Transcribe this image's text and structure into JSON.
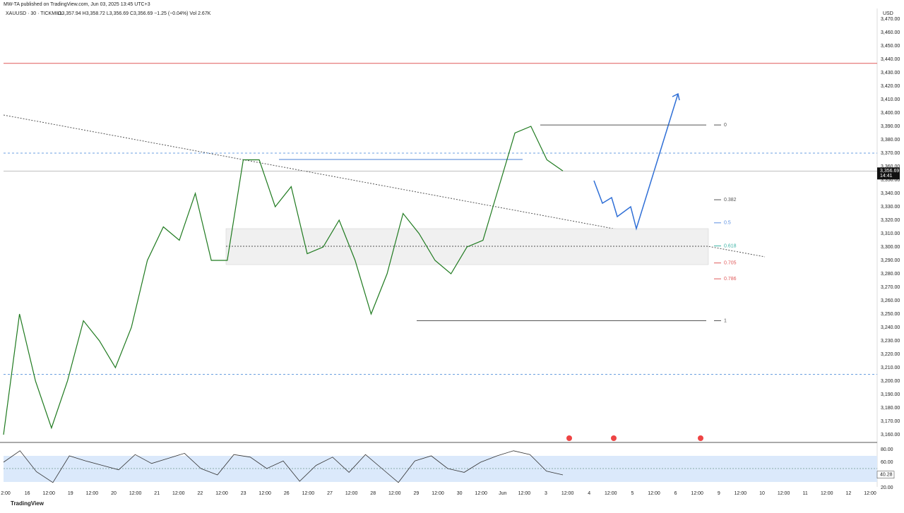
{
  "header": {
    "publisher": "MW-TA published on TradingView.com, Jun 03, 2025 13:45 UTC+3",
    "symbol": "XAUUSD · 30 · TICKMILL",
    "ohlc": "O3,357.94 H3,358.72 L3,356.69 C3,356.69 −1.25 (−0.04%) Vol 2.67K"
  },
  "currency": "USD",
  "price_ticks": [
    {
      "value": 3470,
      "label": "3,470.00"
    },
    {
      "value": 3460,
      "label": "3,460.00"
    },
    {
      "value": 3450,
      "label": "3,450.00"
    },
    {
      "value": 3440,
      "label": "3,440.00"
    },
    {
      "value": 3430,
      "label": "3,430.00"
    },
    {
      "value": 3420,
      "label": "3,420.00"
    },
    {
      "value": 3410,
      "label": "3,410.00"
    },
    {
      "value": 3400,
      "label": "3,400.00"
    },
    {
      "value": 3390,
      "label": "3,390.00"
    },
    {
      "value": 3380,
      "label": "3,380.00"
    },
    {
      "value": 3370,
      "label": "3,370.00"
    },
    {
      "value": 3360,
      "label": "3,360.00"
    },
    {
      "value": 3350,
      "label": "3,350.00"
    },
    {
      "value": 3340,
      "label": "3,340.00"
    },
    {
      "value": 3330,
      "label": "3,330.00"
    },
    {
      "value": 3320,
      "label": "3,320.00"
    },
    {
      "value": 3310,
      "label": "3,310.00"
    },
    {
      "value": 3300,
      "label": "3,300.00"
    },
    {
      "value": 3290,
      "label": "3,290.00"
    },
    {
      "value": 3280,
      "label": "3,280.00"
    },
    {
      "value": 3270,
      "label": "3,270.00"
    },
    {
      "value": 3260,
      "label": "3,260.00"
    },
    {
      "value": 3250,
      "label": "3,250.00"
    },
    {
      "value": 3240,
      "label": "3,240.00"
    },
    {
      "value": 3230,
      "label": "3,230.00"
    },
    {
      "value": 3220,
      "label": "3,220.00"
    },
    {
      "value": 3210,
      "label": "3,210.00"
    },
    {
      "value": 3200,
      "label": "3,200.00"
    },
    {
      "value": 3190,
      "label": "3,190.00"
    },
    {
      "value": 3180,
      "label": "3,180.00"
    },
    {
      "value": 3170,
      "label": "3,170.00"
    },
    {
      "value": 3160,
      "label": "3,160.00"
    }
  ],
  "current_price": {
    "value": 3356.69,
    "label": "3,356.69",
    "countdown": "14:41"
  },
  "rsi_ticks": [
    {
      "value": 80,
      "label": "80.00"
    },
    {
      "value": 60,
      "label": "60.00"
    },
    {
      "value": 20,
      "label": "20.00"
    }
  ],
  "current_rsi": {
    "value": 40.28,
    "label": "40.28"
  },
  "time_labels": [
    "2:00",
    "16",
    "12:00",
    "19",
    "12:00",
    "20",
    "12:00",
    "21",
    "12:00",
    "22",
    "12:00",
    "23",
    "12:00",
    "26",
    "12:00",
    "27",
    "12:00",
    "28",
    "12:00",
    "29",
    "12:00",
    "30",
    "12:00",
    "Jun",
    "12:00",
    "3",
    "12:00",
    "4",
    "12:00",
    "5",
    "12:00",
    "6",
    "12:00",
    "9",
    "12:00",
    "10",
    "12:00",
    "11",
    "12:00",
    "12",
    "12:00"
  ],
  "price_path": [
    3160,
    3250,
    3200,
    3165,
    3200,
    3245,
    3230,
    3210,
    3240,
    3290,
    3315,
    3305,
    3340,
    3290,
    3290,
    3365,
    3365,
    3330,
    3345,
    3295,
    3300,
    3320,
    3290,
    3250,
    3280,
    3325,
    3310,
    3290,
    3280,
    3300,
    3305,
    3345,
    3385,
    3390,
    3365,
    3356.69
  ],
  "rsi_path": [
    60,
    78,
    45,
    28,
    70,
    62,
    55,
    48,
    72,
    58,
    66,
    74,
    50,
    40,
    72,
    68,
    50,
    62,
    30,
    55,
    68,
    44,
    72,
    50,
    28,
    62,
    70,
    50,
    44,
    60,
    70,
    78,
    72,
    46,
    40
  ],
  "fib": {
    "high": 3391,
    "low": 3245,
    "levels": [
      {
        "level": 0,
        "color": "#555"
      },
      {
        "level": 0.382,
        "color": "#555"
      },
      {
        "level": 0.5,
        "color": "#5b8fe0"
      },
      {
        "level": 0.618,
        "color": "#3bb3a6"
      },
      {
        "level": 0.705,
        "color": "#e05a5a"
      },
      {
        "level": 0.786,
        "color": "#e05a5a"
      },
      {
        "level": 1,
        "color": "#555"
      }
    ]
  },
  "brand": "TradingView"
}
